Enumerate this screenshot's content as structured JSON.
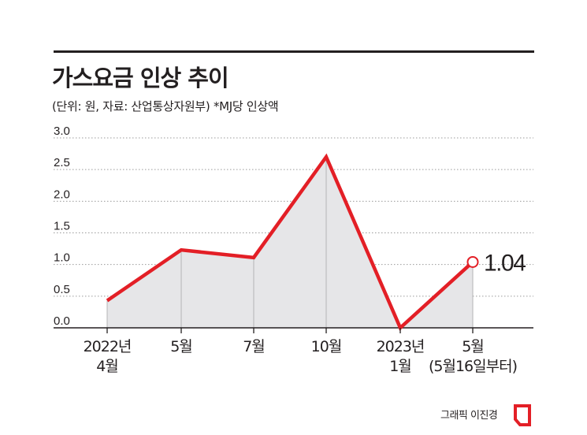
{
  "title": "가스요금 인상 추이",
  "subtitle": "(단위: 원, 자료: 산업통상자원부)  *MJ당 인상액",
  "credit": "그래픽 이진경",
  "colors": {
    "line": "#e31f26",
    "area": "#e6e6e8",
    "text": "#231f20",
    "grid": "#9a9a9a"
  },
  "chart_data": {
    "type": "line",
    "title": "가스요금 인상 추이",
    "ylim": [
      0,
      3.0
    ],
    "yticks": [
      "0.0",
      "0.5",
      "1.0",
      "1.5",
      "2.0",
      "2.5",
      "3.0"
    ],
    "grid": true,
    "categories": [
      [
        "2022년",
        "4월"
      ],
      [
        "5월"
      ],
      [
        "7월"
      ],
      [
        "10월"
      ],
      [
        "2023년",
        "1월"
      ],
      [
        "5월",
        "(5월16일부터)"
      ]
    ],
    "series": [
      {
        "values": [
          0.43,
          1.23,
          1.11,
          2.7,
          0,
          1.04
        ]
      }
    ],
    "annotations": [
      {
        "index": 5,
        "text": "1.04"
      }
    ]
  }
}
